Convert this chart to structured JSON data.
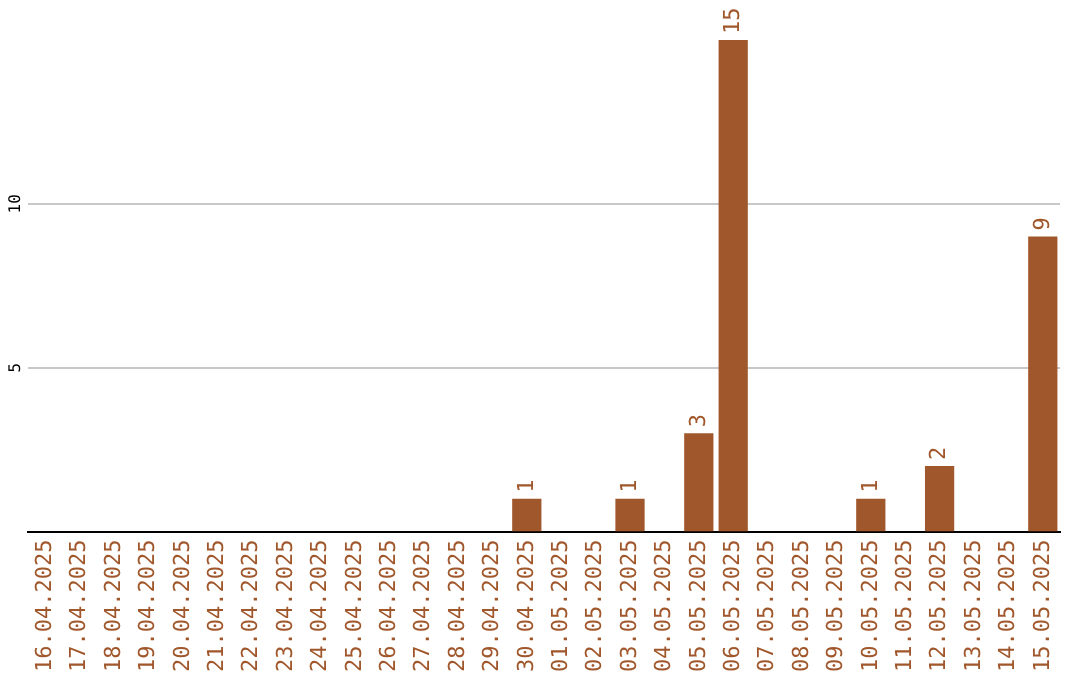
{
  "chart_data": {
    "type": "bar",
    "categories": [
      "16.04.2025",
      "17.04.2025",
      "18.04.2025",
      "19.04.2025",
      "20.04.2025",
      "21.04.2025",
      "22.04.2025",
      "23.04.2025",
      "24.04.2025",
      "25.04.2025",
      "26.04.2025",
      "27.04.2025",
      "28.04.2025",
      "29.04.2025",
      "30.04.2025",
      "01.05.2025",
      "02.05.2025",
      "03.05.2025",
      "04.05.2025",
      "05.05.2025",
      "06.05.2025",
      "07.05.2025",
      "08.05.2025",
      "09.05.2025",
      "10.05.2025",
      "11.05.2025",
      "12.05.2025",
      "13.05.2025",
      "14.05.2025",
      "15.05.2025"
    ],
    "values": [
      0,
      0,
      0,
      0,
      0,
      0,
      0,
      0,
      0,
      0,
      0,
      0,
      0,
      0,
      1,
      0,
      0,
      1,
      0,
      3,
      15,
      0,
      0,
      0,
      1,
      0,
      2,
      0,
      0,
      9
    ],
    "value_labels": [
      null,
      null,
      null,
      null,
      null,
      null,
      null,
      null,
      null,
      null,
      null,
      null,
      null,
      null,
      "1",
      null,
      null,
      "1",
      null,
      "3",
      "15",
      null,
      null,
      null,
      "1",
      null,
      "2",
      null,
      null,
      "9"
    ],
    "color": "#a0572b",
    "ylim": [
      0,
      15
    ],
    "yticks": [
      5,
      10
    ],
    "grid": "y",
    "legend": false
  }
}
